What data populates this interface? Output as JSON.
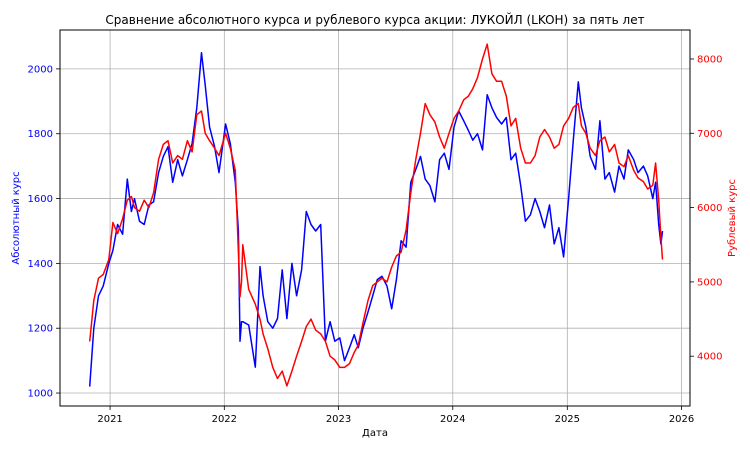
{
  "chart_data": {
    "type": "line",
    "title": "Сравнение абсолютного курса и рублевого курса акции: ЛУКОЙЛ (LKOH) за пять лет",
    "xlabel": "Дата",
    "ylabel_left": "Абсолютный курс",
    "ylabel_right": "Рублевый курс",
    "grid": true,
    "colors": {
      "left": "#0000ff",
      "right": "#ff0000"
    },
    "x_range": [
      "2020-07-25",
      "2026-01-28"
    ],
    "x_ticks": [
      "2021-01-01",
      "2022-01-01",
      "2023-01-01",
      "2024-01-01",
      "2025-01-01",
      "2026-01-01"
    ],
    "x_tick_labels": [
      "2021",
      "2022",
      "2023",
      "2024",
      "2025",
      "2026"
    ],
    "left_axis": {
      "range": [
        960,
        2120
      ],
      "ticks": [
        1000,
        1200,
        1400,
        1600,
        1800,
        2000
      ]
    },
    "right_axis": {
      "range": [
        3330,
        8390
      ],
      "ticks": [
        4000,
        5000,
        6000,
        7000,
        8000
      ]
    },
    "series": [
      {
        "axis": "left",
        "color": "#0000ff",
        "x": [
          "2020-10-28",
          "2020-11-10",
          "2020-11-25",
          "2020-12-10",
          "2020-12-28",
          "2021-01-10",
          "2021-01-25",
          "2021-02-10",
          "2021-02-25",
          "2021-03-10",
          "2021-03-20",
          "2021-04-05",
          "2021-04-20",
          "2021-05-05",
          "2021-05-20",
          "2021-06-05",
          "2021-06-20",
          "2021-07-05",
          "2021-07-20",
          "2021-08-05",
          "2021-08-20",
          "2021-09-05",
          "2021-09-20",
          "2021-10-05",
          "2021-10-20",
          "2021-11-01",
          "2021-11-15",
          "2021-12-01",
          "2021-12-15",
          "2022-01-05",
          "2022-01-20",
          "2022-02-05",
          "2022-02-15",
          "2022-02-20",
          "2022-02-25",
          "2022-03-01",
          "2022-03-20",
          "2022-04-10",
          "2022-04-25",
          "2022-05-05",
          "2022-05-20",
          "2022-06-05",
          "2022-06-20",
          "2022-07-05",
          "2022-07-20",
          "2022-08-05",
          "2022-08-20",
          "2022-09-05",
          "2022-09-20",
          "2022-10-05",
          "2022-10-20",
          "2022-11-05",
          "2022-11-20",
          "2022-12-05",
          "2022-12-20",
          "2023-01-05",
          "2023-01-20",
          "2023-02-05",
          "2023-02-20",
          "2023-03-05",
          "2023-03-20",
          "2023-04-05",
          "2023-04-20",
          "2023-05-05",
          "2023-05-20",
          "2023-06-05",
          "2023-06-20",
          "2023-07-05",
          "2023-07-20",
          "2023-08-05",
          "2023-08-20",
          "2023-09-05",
          "2023-09-20",
          "2023-10-05",
          "2023-10-20",
          "2023-11-05",
          "2023-11-20",
          "2023-12-05",
          "2023-12-20",
          "2024-01-05",
          "2024-01-20",
          "2024-02-05",
          "2024-02-20",
          "2024-03-05",
          "2024-03-20",
          "2024-04-05",
          "2024-04-20",
          "2024-05-05",
          "2024-05-20",
          "2024-06-05",
          "2024-06-20",
          "2024-07-05",
          "2024-07-20",
          "2024-08-05",
          "2024-08-20",
          "2024-09-05",
          "2024-09-20",
          "2024-10-05",
          "2024-10-20",
          "2024-11-05",
          "2024-11-20",
          "2024-12-05",
          "2024-12-20",
          "2025-01-05",
          "2025-01-20",
          "2025-02-05",
          "2025-02-15",
          "2025-03-01",
          "2025-03-15",
          "2025-04-01",
          "2025-04-15",
          "2025-05-01",
          "2025-05-15",
          "2025-06-01",
          "2025-06-15",
          "2025-07-01",
          "2025-07-15",
          "2025-08-01",
          "2025-08-15",
          "2025-09-01",
          "2025-09-15",
          "2025-10-01",
          "2025-10-10",
          "2025-10-20",
          "2025-10-27",
          "2025-11-01"
        ],
        "values": [
          1020,
          1200,
          1300,
          1330,
          1400,
          1440,
          1520,
          1490,
          1660,
          1560,
          1600,
          1530,
          1520,
          1580,
          1590,
          1680,
          1730,
          1760,
          1650,
          1720,
          1670,
          1720,
          1770,
          1880,
          2050,
          1950,
          1820,
          1760,
          1680,
          1830,
          1770,
          1650,
          1500,
          1160,
          1220,
          1220,
          1210,
          1080,
          1390,
          1300,
          1220,
          1200,
          1230,
          1380,
          1230,
          1400,
          1300,
          1380,
          1560,
          1520,
          1500,
          1520,
          1160,
          1220,
          1160,
          1170,
          1100,
          1140,
          1180,
          1140,
          1200,
          1250,
          1300,
          1350,
          1360,
          1330,
          1260,
          1350,
          1470,
          1450,
          1650,
          1690,
          1730,
          1660,
          1640,
          1590,
          1720,
          1740,
          1690,
          1820,
          1870,
          1840,
          1810,
          1780,
          1800,
          1750,
          1920,
          1880,
          1850,
          1830,
          1850,
          1720,
          1740,
          1640,
          1530,
          1550,
          1600,
          1560,
          1510,
          1580,
          1460,
          1510,
          1420,
          1600,
          1780,
          1960,
          1880,
          1820,
          1730,
          1690,
          1840,
          1660,
          1680,
          1620,
          1700,
          1660,
          1750,
          1720,
          1680,
          1700,
          1670,
          1600,
          1650,
          1520,
          1460,
          1500
        ]
      },
      {
        "axis": "right",
        "color": "#ff0000",
        "x": [
          "2020-10-28",
          "2020-11-10",
          "2020-11-25",
          "2020-12-10",
          "2020-12-28",
          "2021-01-10",
          "2021-01-25",
          "2021-02-10",
          "2021-02-25",
          "2021-03-10",
          "2021-03-20",
          "2021-04-05",
          "2021-04-20",
          "2021-05-05",
          "2021-05-20",
          "2021-06-05",
          "2021-06-20",
          "2021-07-05",
          "2021-07-20",
          "2021-08-05",
          "2021-08-20",
          "2021-09-05",
          "2021-09-20",
          "2021-10-05",
          "2021-10-20",
          "2021-11-01",
          "2021-11-15",
          "2021-12-01",
          "2021-12-15",
          "2022-01-05",
          "2022-01-20",
          "2022-02-05",
          "2022-02-15",
          "2022-02-20",
          "2022-02-25",
          "2022-03-01",
          "2022-03-20",
          "2022-04-10",
          "2022-04-25",
          "2022-05-05",
          "2022-05-20",
          "2022-06-05",
          "2022-06-20",
          "2022-07-05",
          "2022-07-20",
          "2022-08-05",
          "2022-08-20",
          "2022-09-05",
          "2022-09-20",
          "2022-10-05",
          "2022-10-20",
          "2022-11-05",
          "2022-11-20",
          "2022-12-05",
          "2022-12-20",
          "2023-01-05",
          "2023-01-20",
          "2023-02-05",
          "2023-02-20",
          "2023-03-05",
          "2023-03-20",
          "2023-04-05",
          "2023-04-20",
          "2023-05-05",
          "2023-05-20",
          "2023-06-05",
          "2023-06-20",
          "2023-07-05",
          "2023-07-20",
          "2023-08-05",
          "2023-08-20",
          "2023-09-05",
          "2023-09-20",
          "2023-10-05",
          "2023-10-20",
          "2023-11-05",
          "2023-11-20",
          "2023-12-05",
          "2023-12-20",
          "2024-01-05",
          "2024-01-20",
          "2024-02-05",
          "2024-02-20",
          "2024-03-05",
          "2024-03-20",
          "2024-04-05",
          "2024-04-20",
          "2024-05-05",
          "2024-05-20",
          "2024-06-05",
          "2024-06-20",
          "2024-07-05",
          "2024-07-20",
          "2024-08-05",
          "2024-08-20",
          "2024-09-05",
          "2024-09-20",
          "2024-10-05",
          "2024-10-20",
          "2024-11-05",
          "2024-11-20",
          "2024-12-05",
          "2024-12-20",
          "2025-01-05",
          "2025-01-20",
          "2025-02-05",
          "2025-02-15",
          "2025-03-01",
          "2025-03-15",
          "2025-04-01",
          "2025-04-15",
          "2025-05-01",
          "2025-05-15",
          "2025-06-01",
          "2025-06-15",
          "2025-07-01",
          "2025-07-15",
          "2025-08-01",
          "2025-08-15",
          "2025-09-01",
          "2025-09-15",
          "2025-10-01",
          "2025-10-10",
          "2025-10-20",
          "2025-10-27",
          "2025-11-01"
        ],
        "values": [
          4200,
          4750,
          5050,
          5100,
          5300,
          5800,
          5650,
          5850,
          6100,
          6150,
          6000,
          5950,
          6100,
          6000,
          6200,
          6650,
          6850,
          6900,
          6600,
          6700,
          6650,
          6900,
          6750,
          7250,
          7300,
          7000,
          6900,
          6800,
          6700,
          7000,
          6800,
          6500,
          5400,
          4800,
          5000,
          5500,
          4900,
          4700,
          4500,
          4300,
          4100,
          3850,
          3700,
          3800,
          3600,
          3800,
          4000,
          4200,
          4400,
          4500,
          4350,
          4300,
          4200,
          4000,
          3950,
          3850,
          3850,
          3900,
          4050,
          4150,
          4450,
          4750,
          4950,
          5000,
          5050,
          5000,
          5200,
          5350,
          5400,
          5700,
          6200,
          6650,
          7000,
          7400,
          7250,
          7150,
          6950,
          6800,
          7000,
          7200,
          7300,
          7450,
          7500,
          7600,
          7750,
          8000,
          8200,
          7800,
          7700,
          7700,
          7500,
          7100,
          7200,
          6800,
          6600,
          6600,
          6700,
          6950,
          7050,
          6950,
          6800,
          6850,
          7100,
          7200,
          7350,
          7400,
          7100,
          7000,
          6800,
          6700,
          6900,
          6950,
          6750,
          6850,
          6600,
          6550,
          6700,
          6500,
          6400,
          6350,
          6250,
          6300,
          6600,
          6100,
          5600,
          5300
        ]
      }
    ]
  }
}
